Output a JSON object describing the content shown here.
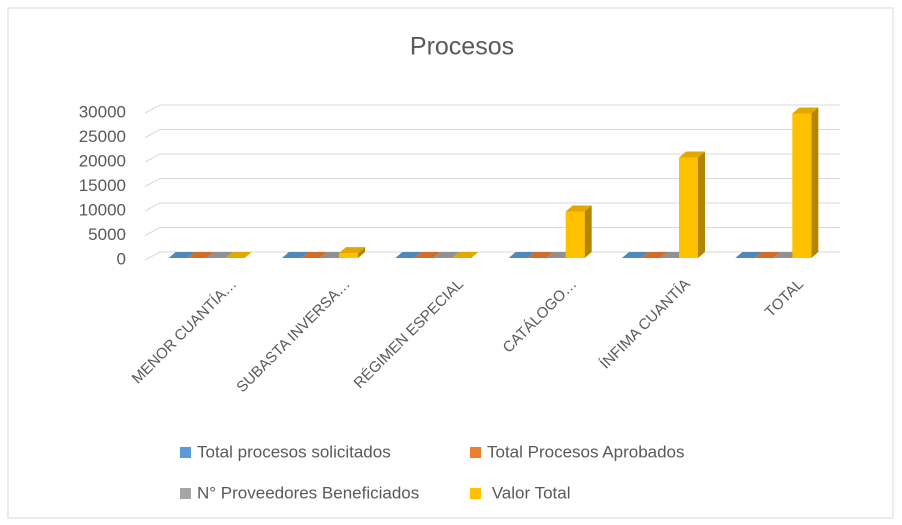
{
  "chart_data": {
    "type": "bar3d",
    "title": "Procesos",
    "categories": [
      "MENOR CUANTÍA…",
      "SUBASTA INVERSA…",
      "RÉGIMEN ESPECIAL",
      "CATÁLOGO…",
      "ÍNFIMA CUANTÍA",
      "TOTAL"
    ],
    "series": [
      {
        "name": "Total procesos solicitados",
        "color": "#5b9bd5",
        "values": [
          0,
          0,
          0,
          0,
          0,
          0
        ]
      },
      {
        "name": "Total Procesos Aprobados",
        "color": "#ed7d31",
        "values": [
          0,
          0,
          0,
          0,
          0,
          0
        ]
      },
      {
        "name": "N° Proveedores Beneficiados",
        "color": "#a5a5a5",
        "values": [
          0,
          0,
          0,
          0,
          0,
          0
        ]
      },
      {
        "name": " Valor Total",
        "color": "#ffc000",
        "values": [
          0,
          1000,
          0,
          9500,
          20500,
          29500
        ]
      }
    ],
    "ylim": [
      0,
      30000
    ],
    "yticks": [
      0,
      5000,
      10000,
      15000,
      20000,
      25000,
      30000
    ],
    "grid": true,
    "legend": "bottom"
  }
}
